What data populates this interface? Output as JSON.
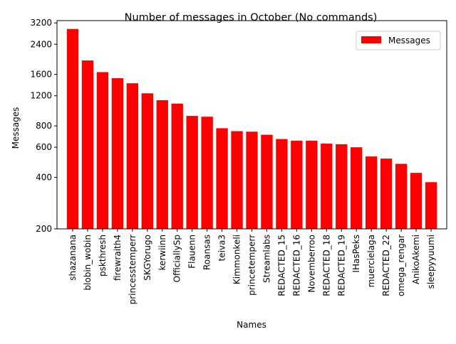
{
  "chart_data": {
    "type": "bar",
    "title": "Number of messages in October (No commands)",
    "xlabel": "Names",
    "ylabel": "Messages",
    "yscale": "log",
    "ylim": [
      200,
      3300
    ],
    "yticks": [
      200,
      400,
      600,
      800,
      1200,
      1600,
      2400,
      3200
    ],
    "ytick_labels": [
      "200",
      "400",
      "600",
      "800",
      "1200",
      "1600",
      "2400",
      "3200"
    ],
    "grid": false,
    "legend_position": "top-right",
    "bar_color": "#ff0000",
    "categories": [
      "shazanana",
      "blobin_wobin",
      "pskthresh",
      "firewraith4",
      "princesstemperr",
      "SKGYorugo",
      "kerwiinn",
      "OfficiallySp",
      "Flauenn",
      "Roansas",
      "teiva3",
      "Kimmonkeli",
      "princetemperr",
      "Streamlabs",
      "REDACTED_15",
      "REDACTED_16",
      "Novemberroo",
      "REDACTED_18",
      "REDACTED_19",
      "IHasPeks",
      "muercielaga",
      "REDACTED_22",
      "omega_rengar",
      "AnikoAkemi",
      "sleepyyuumi"
    ],
    "series": [
      {
        "name": "Messages",
        "values": [
          2950,
          1930,
          1650,
          1520,
          1420,
          1240,
          1130,
          1080,
          915,
          905,
          775,
          745,
          740,
          710,
          670,
          655,
          655,
          630,
          625,
          600,
          530,
          515,
          480,
          425,
          375
        ]
      }
    ]
  }
}
